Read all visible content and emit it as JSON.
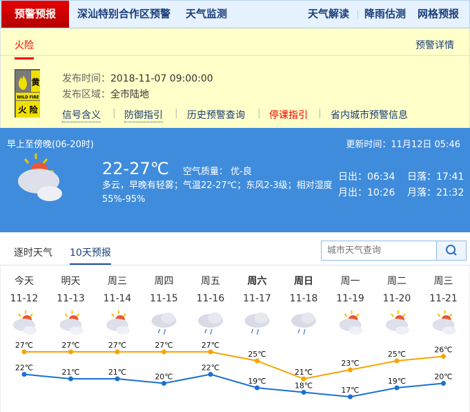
{
  "topnav": {
    "active": "预警预报",
    "items": [
      "深汕特别合作区预警",
      "天气监测"
    ],
    "right": [
      "天气解读",
      "降雨估测",
      "网格预报"
    ]
  },
  "warning": {
    "tab": "火险",
    "details_link": "预警详情",
    "badge": {
      "level": "黄",
      "en": "WILD FIRE",
      "cn": "火 险"
    },
    "publish_time_label": "发布时间：",
    "publish_time": "2018-11-07 09:00:00",
    "area_label": "发布区域：",
    "area": "全市陆地",
    "links": [
      "信号含义",
      "防御指引",
      "历史预警查询",
      "停课指引",
      "省内城市预警信息"
    ]
  },
  "now": {
    "period": "早上至傍晚(06-20时)",
    "update": "更新时间：11月12日 05:46",
    "temp": "22-27℃",
    "aqi": "空气质量： 优-良",
    "desc": "多云，早晚有轻雾；气温22-27℃；东风2-3级；相对湿度55%-95%",
    "sunrise": "日出：06:34",
    "sunset": "日落：17:41",
    "moonrise": "月出：10:26",
    "moonset": "月落：21:32",
    "icon": "partly-cloudy-icon"
  },
  "tabs": [
    "逐时天气",
    "10天预报"
  ],
  "search": {
    "placeholder": "城市天气查询"
  },
  "colors": {
    "high": "#f5a500",
    "low": "#1a6fd0",
    "accent": "#408cdc",
    "alert": "#e00000"
  },
  "forecast": {
    "days": [
      {
        "name": "今天",
        "date": "11-12",
        "icon": "partly-cloudy",
        "high": "27℃",
        "low": "22℃",
        "hv": 27,
        "lv": 22
      },
      {
        "name": "明天",
        "date": "11-13",
        "icon": "partly-cloudy",
        "high": "27℃",
        "low": "21℃",
        "hv": 27,
        "lv": 21
      },
      {
        "name": "周三",
        "date": "11-14",
        "icon": "partly-cloudy",
        "high": "27℃",
        "low": "21℃",
        "hv": 27,
        "lv": 21
      },
      {
        "name": "周四",
        "date": "11-15",
        "icon": "rain",
        "high": "27℃",
        "low": "20℃",
        "hv": 27,
        "lv": 20
      },
      {
        "name": "周五",
        "date": "11-16",
        "icon": "rain",
        "high": "27℃",
        "low": "22℃",
        "hv": 27,
        "lv": 22
      },
      {
        "name": "周六",
        "date": "11-17",
        "icon": "rain",
        "high": "25℃",
        "low": "19℃",
        "hv": 25,
        "lv": 19,
        "weekend": true
      },
      {
        "name": "周日",
        "date": "11-18",
        "icon": "rain",
        "high": "21℃",
        "low": "18℃",
        "hv": 21,
        "lv": 18,
        "weekend": true
      },
      {
        "name": "周一",
        "date": "11-19",
        "icon": "partly-cloudy",
        "high": "23℃",
        "low": "17℃",
        "hv": 23,
        "lv": 17
      },
      {
        "name": "周二",
        "date": "11-20",
        "icon": "partly-cloudy",
        "high": "25℃",
        "low": "19℃",
        "hv": 25,
        "lv": 19
      },
      {
        "name": "周三",
        "date": "11-21",
        "icon": "partly-cloudy",
        "high": "26℃",
        "low": "20℃",
        "hv": 26,
        "lv": 20
      }
    ]
  }
}
